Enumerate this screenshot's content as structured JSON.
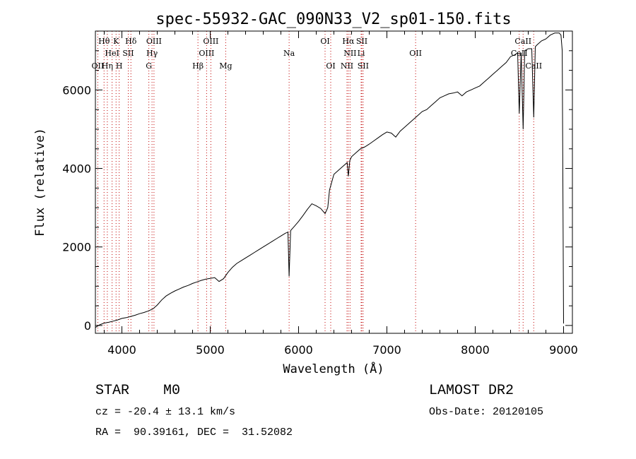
{
  "chart_data": {
    "type": "line",
    "title": "spec-55932-GAC_090N33_V2_sp01-150.fits",
    "xlabel": "Wavelength (Å)",
    "ylabel": "Flux (relative)",
    "xlim": [
      3700,
      9100
    ],
    "ylim": [
      -200,
      7500
    ],
    "xticks": [
      4000,
      5000,
      6000,
      7000,
      8000,
      9000
    ],
    "yticks": [
      0,
      2000,
      4000,
      6000
    ],
    "xtick_labels": [
      "4000",
      "5000",
      "6000",
      "7000",
      "8000",
      "9000"
    ],
    "ytick_labels": [
      "0",
      "2000",
      "4000",
      "6000"
    ],
    "series": [
      {
        "name": "flux",
        "x": [
          3700,
          3750,
          3800,
          3850,
          3900,
          3950,
          4000,
          4050,
          4100,
          4150,
          4200,
          4250,
          4300,
          4350,
          4400,
          4450,
          4500,
          4550,
          4600,
          4650,
          4700,
          4750,
          4800,
          4850,
          4900,
          4950,
          5000,
          5050,
          5100,
          5150,
          5200,
          5250,
          5300,
          5350,
          5400,
          5450,
          5500,
          5550,
          5600,
          5650,
          5700,
          5750,
          5800,
          5850,
          5880,
          5893,
          5910,
          5950,
          6000,
          6050,
          6100,
          6150,
          6200,
          6250,
          6300,
          6330,
          6350,
          6400,
          6450,
          6500,
          6550,
          6563,
          6580,
          6600,
          6650,
          6700,
          6750,
          6800,
          6850,
          6900,
          6950,
          7000,
          7050,
          7100,
          7150,
          7200,
          7250,
          7300,
          7350,
          7400,
          7450,
          7500,
          7550,
          7600,
          7650,
          7700,
          7750,
          7800,
          7850,
          7900,
          7950,
          8000,
          8050,
          8100,
          8150,
          8200,
          8250,
          8300,
          8350,
          8400,
          8450,
          8480,
          8498,
          8520,
          8542,
          8560,
          8600,
          8640,
          8662,
          8680,
          8700,
          8750,
          8800,
          8850,
          8900,
          8950,
          8970,
          8985,
          9000
        ],
        "values": [
          -50,
          20,
          60,
          80,
          110,
          140,
          180,
          200,
          230,
          260,
          300,
          330,
          370,
          420,
          520,
          650,
          750,
          820,
          880,
          930,
          980,
          1020,
          1070,
          1110,
          1150,
          1180,
          1200,
          1220,
          1120,
          1190,
          1350,
          1480,
          1580,
          1650,
          1720,
          1790,
          1860,
          1930,
          2000,
          2070,
          2140,
          2210,
          2280,
          2350,
          2380,
          1250,
          2420,
          2520,
          2650,
          2800,
          2960,
          3100,
          3050,
          2980,
          2850,
          3000,
          3450,
          3850,
          3950,
          4050,
          4150,
          3800,
          4200,
          4300,
          4400,
          4500,
          4550,
          4620,
          4700,
          4780,
          4860,
          4930,
          4900,
          4800,
          4950,
          5050,
          5150,
          5250,
          5350,
          5450,
          5500,
          5600,
          5700,
          5800,
          5850,
          5900,
          5920,
          5950,
          5850,
          5950,
          6000,
          6050,
          6100,
          6200,
          6300,
          6400,
          6500,
          6600,
          6700,
          6850,
          6900,
          6950,
          5400,
          6950,
          5000,
          7000,
          7050,
          7050,
          5300,
          7100,
          7150,
          7250,
          7300,
          7400,
          7450,
          7450,
          7400,
          7000,
          50
        ],
        "color": "#000000"
      }
    ],
    "lines": [
      {
        "label": "Hθ",
        "wl": 3798,
        "row": 1
      },
      {
        "label": "OII",
        "wl": 3727,
        "row": 3
      },
      {
        "label": "Hη",
        "wl": 3835,
        "row": 3
      },
      {
        "label": "K",
        "wl": 3934,
        "row": 1
      },
      {
        "label": "HeI",
        "wl": 3889,
        "row": 2
      },
      {
        "label": "SII",
        "wl": 4072,
        "row": 2
      },
      {
        "label": "H",
        "wl": 3969,
        "row": 3
      },
      {
        "label": "Hδ",
        "wl": 4102,
        "row": 1
      },
      {
        "label": "OIII",
        "wl": 4363,
        "row": 1
      },
      {
        "label": "Hγ",
        "wl": 4341,
        "row": 2
      },
      {
        "label": "G",
        "wl": 4305,
        "row": 3
      },
      {
        "label": "OIII",
        "wl": 5007,
        "row": 1
      },
      {
        "label": "OIII",
        "wl": 4959,
        "row": 2
      },
      {
        "label": "Hβ",
        "wl": 4861,
        "row": 3
      },
      {
        "label": "Mg",
        "wl": 5175,
        "row": 3
      },
      {
        "label": "Na",
        "wl": 5893,
        "row": 2
      },
      {
        "label": "OI",
        "wl": 6300,
        "row": 1
      },
      {
        "label": "OI",
        "wl": 6364,
        "row": 3
      },
      {
        "label": "Hα",
        "wl": 6563,
        "row": 1
      },
      {
        "label": "SII",
        "wl": 6716,
        "row": 1
      },
      {
        "label": "NII",
        "wl": 6583,
        "row": 2
      },
      {
        "label": "Li",
        "wl": 6708,
        "row": 2
      },
      {
        "label": "NII",
        "wl": 6548,
        "row": 3
      },
      {
        "label": "SII",
        "wl": 6731,
        "row": 3
      },
      {
        "label": "OII",
        "wl": 7325,
        "row": 2
      },
      {
        "label": "CaII",
        "wl": 8542,
        "row": 1
      },
      {
        "label": "CaII",
        "wl": 8498,
        "row": 2
      },
      {
        "label": "CaII",
        "wl": 8662,
        "row": 3
      }
    ]
  },
  "info": {
    "class": "STAR    M0",
    "survey": "LAMOST DR2",
    "cz": "cz = -20.4 ± 13.1 km/s",
    "obs_date": "Obs-Date: 20120105",
    "coords": "RA =  90.39161, DEC =  31.52082"
  }
}
